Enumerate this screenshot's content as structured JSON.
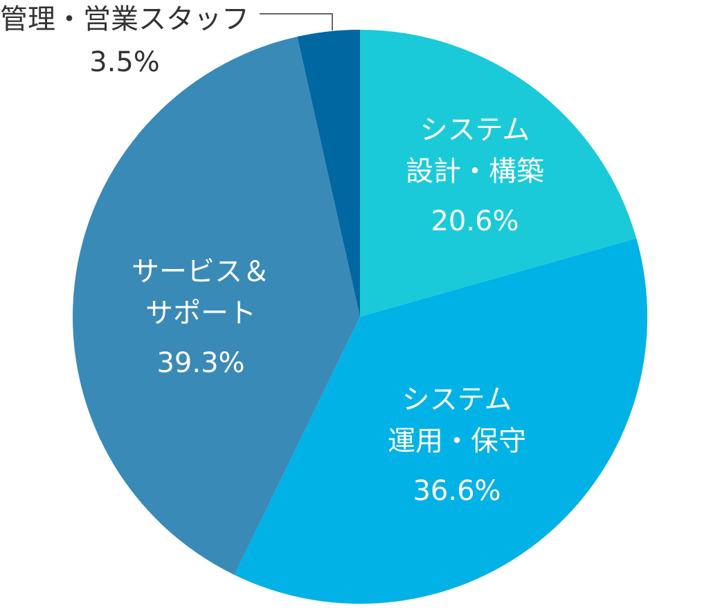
{
  "chart_data": {
    "type": "pie",
    "categories": [
      [
        "システム",
        "設計・構築"
      ],
      [
        "システム",
        "運用・保守"
      ],
      [
        "サービス＆",
        "サポート"
      ],
      [
        "管理・営業スタッフ"
      ]
    ],
    "values": [
      20.6,
      36.6,
      39.3,
      3.5
    ],
    "value_labels": [
      "20.6%",
      "36.6%",
      "39.3%",
      "3.5%"
    ],
    "colors": [
      "#1bcad8",
      "#00b2e5",
      "#3a8ab8",
      "#0067a0"
    ]
  }
}
